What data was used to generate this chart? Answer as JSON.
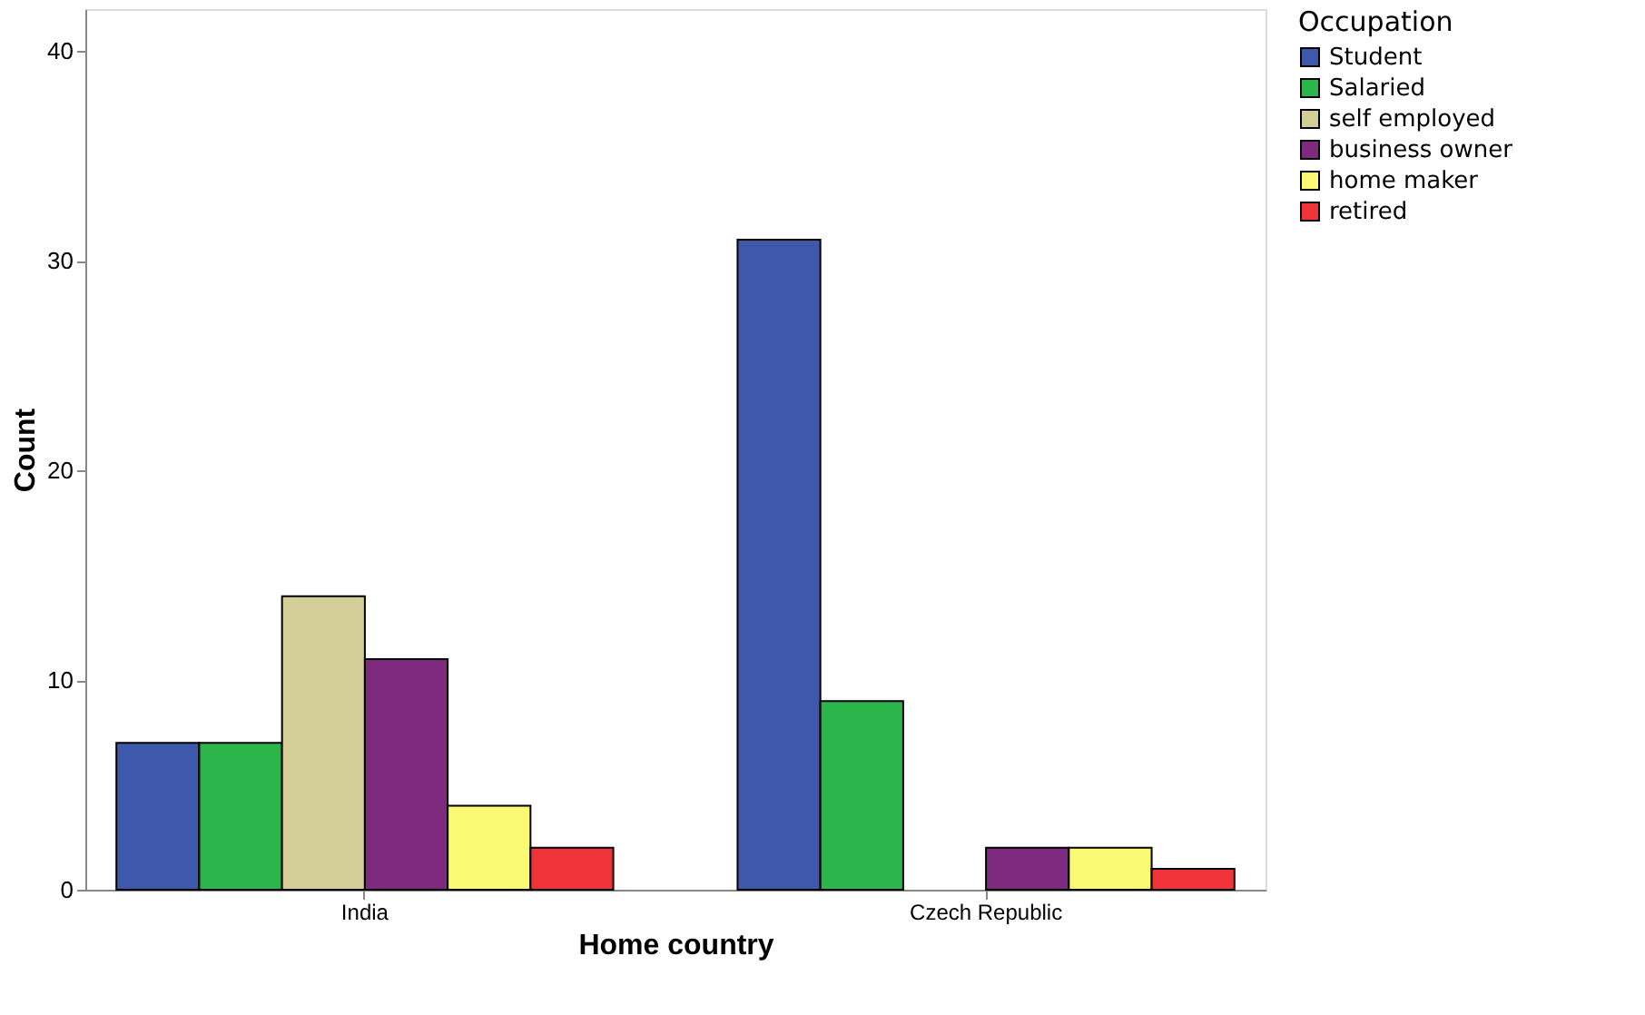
{
  "chart_data": {
    "type": "bar",
    "xlabel": "Home country",
    "ylabel": "Count",
    "legend_title": "Occupation",
    "categories": [
      "India",
      "Czech Republic"
    ],
    "series": [
      {
        "name": "Student",
        "color": "#3e58ac",
        "values": [
          7,
          31
        ]
      },
      {
        "name": "Salaried",
        "color": "#2bb54a",
        "values": [
          7,
          9
        ]
      },
      {
        "name": "self employed",
        "color": "#d3ce97",
        "values": [
          14,
          null
        ]
      },
      {
        "name": "business owner",
        "color": "#7e2a7f",
        "values": [
          11,
          2
        ]
      },
      {
        "name": "home maker",
        "color": "#fbf873",
        "values": [
          4,
          2
        ]
      },
      {
        "name": "retired",
        "color": "#ef3338",
        "values": [
          2,
          1
        ]
      }
    ],
    "ylim": [
      0,
      42
    ],
    "yticks": [
      0,
      10,
      20,
      30,
      40
    ],
    "grid": false,
    "legend": "top right"
  }
}
